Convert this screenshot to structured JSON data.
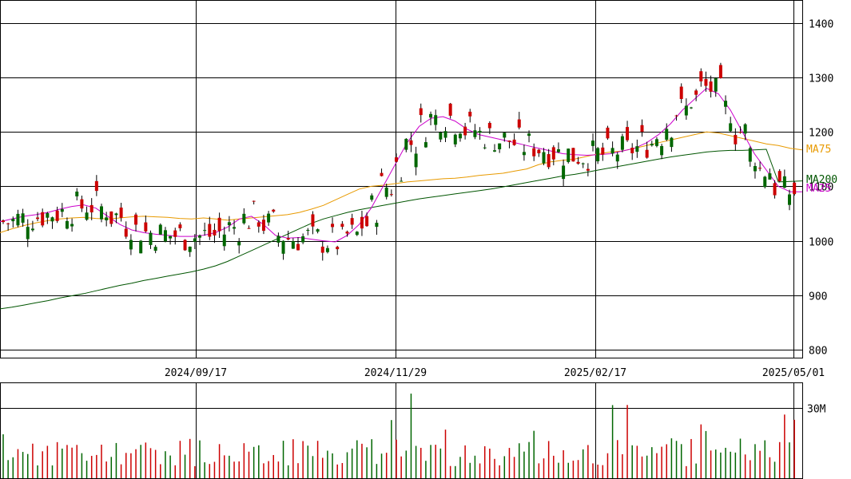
{
  "chart_data": [
    {
      "type": "candlestick",
      "title": "",
      "xlabel": "",
      "ylabel": "",
      "ylim": [
        795,
        1440
      ],
      "y_ticks": [
        "800",
        "900",
        "1000",
        "1100",
        "1200",
        "1300",
        "1400"
      ],
      "x_ticks": [
        "2024/09/17",
        "2024/11/29",
        "2025/02/17",
        "2025/05/01"
      ],
      "grid": true,
      "colors": {
        "up": "#cc0000",
        "down": "#006600",
        "ma25": "#cc00cc",
        "ma75": "#e89a00",
        "ma200": "#005500"
      },
      "moving_averages": [
        {
          "name": "MA75",
          "color": "#e89a00",
          "values": [
            1015,
            1022,
            1028,
            1033,
            1037,
            1040,
            1042,
            1043,
            1041,
            1040,
            1042,
            1044,
            1045,
            1044,
            1043,
            1041,
            1040,
            1042,
            1040,
            1038,
            1040,
            1042,
            1044,
            1046,
            1048,
            1052,
            1058,
            1065,
            1075,
            1085,
            1095,
            1100,
            1102,
            1105,
            1108,
            1110,
            1112,
            1114,
            1115,
            1117,
            1120,
            1122,
            1124,
            1128,
            1132,
            1140,
            1145,
            1148,
            1150,
            1155,
            1160,
            1163,
            1165,
            1170,
            1175,
            1180,
            1185,
            1190,
            1195,
            1200,
            1198,
            1193,
            1188,
            1183,
            1178,
            1175,
            1170,
            1167
          ]
        },
        {
          "name": "MA200",
          "color": "#005500",
          "values": [
            875,
            878,
            882,
            886,
            890,
            895,
            899,
            903,
            908,
            913,
            918,
            922,
            927,
            931,
            935,
            939,
            943,
            948,
            954,
            962,
            972,
            982,
            992,
            1002,
            1012,
            1022,
            1032,
            1040,
            1046,
            1052,
            1057,
            1061,
            1065,
            1069,
            1073,
            1077,
            1080,
            1083,
            1086,
            1089,
            1092,
            1095,
            1099,
            1103,
            1107,
            1111,
            1115,
            1119,
            1122,
            1126,
            1130,
            1134,
            1138,
            1142,
            1146,
            1150,
            1154,
            1157,
            1160,
            1163,
            1165,
            1166,
            1166,
            1167,
            1168,
            1108,
            1109,
            1110
          ]
        },
        {
          "name": "MA25",
          "color": "#cc00cc",
          "values": [
            1035,
            1040,
            1045,
            1048,
            1052,
            1058,
            1063,
            1066,
            1060,
            1045,
            1030,
            1020,
            1015,
            1012,
            1010,
            1008,
            1008,
            1010,
            1015,
            1025,
            1040,
            1045,
            1030,
            1010,
            1005,
            1006,
            1003,
            1000,
            998,
            1010,
            1030,
            1060,
            1100,
            1140,
            1180,
            1210,
            1225,
            1228,
            1220,
            1205,
            1195,
            1190,
            1185,
            1180,
            1175,
            1170,
            1165,
            1160,
            1158,
            1157,
            1158,
            1160,
            1165,
            1170,
            1180,
            1195,
            1215,
            1240,
            1260,
            1280,
            1270,
            1240,
            1200,
            1160,
            1130,
            1100,
            1090,
            1090
          ]
        }
      ],
      "volume": {
        "y_ticks": [
          "30M"
        ],
        "ylim": [
          0,
          40
        ],
        "unit": "M"
      }
    }
  ]
}
